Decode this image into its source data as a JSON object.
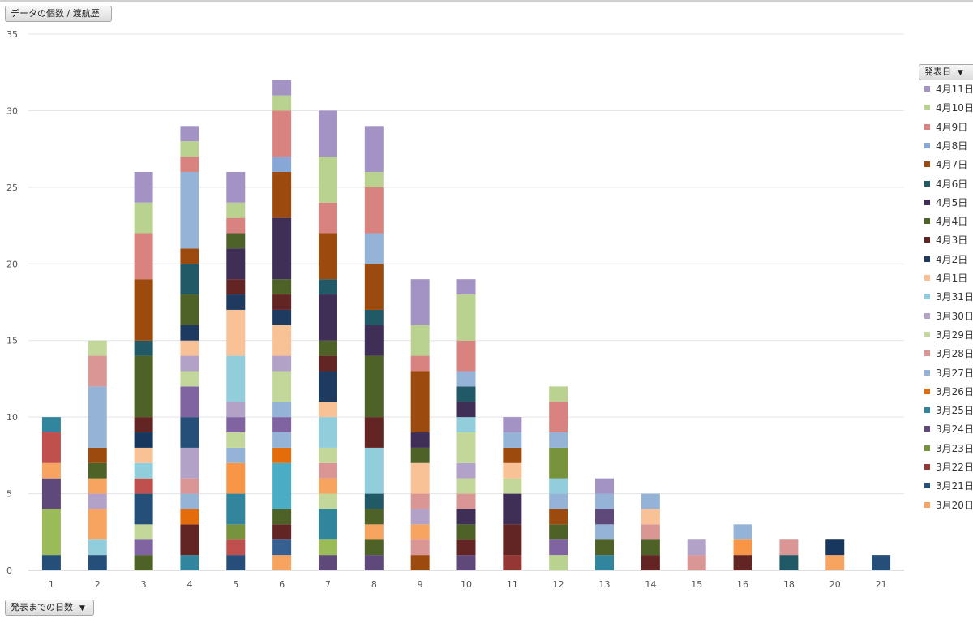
{
  "controls": {
    "value_field": "データの個数 / 渡航歴",
    "legend_field": "発表日",
    "axis_field": "発表までの日数",
    "dropdown_glyph": "▼"
  },
  "chart_data": {
    "type": "bar",
    "stacked": true,
    "title": "",
    "xlabel": "",
    "ylabel": "",
    "ylim": [
      0,
      35
    ],
    "yticks": [
      0,
      5,
      10,
      15,
      20,
      25,
      30,
      35
    ],
    "grid": true,
    "legend_position": "right",
    "categories": [
      "1",
      "2",
      "3",
      "4",
      "5",
      "6",
      "7",
      "8",
      "9",
      "10",
      "11",
      "12",
      "13",
      "14",
      "15",
      "16",
      "18",
      "20",
      "21"
    ],
    "stacks": [
      [
        [
          "3月21日",
          1
        ],
        [
          "3月23日",
          3
        ],
        [
          "3月24日",
          2
        ],
        [
          "3月20日",
          1
        ],
        [
          "3月22日",
          2
        ],
        [
          "3月25日",
          1
        ]
      ],
      [
        [
          "3月21日",
          1
        ],
        [
          "3月31日",
          1
        ],
        [
          "3月20日",
          2
        ],
        [
          "3月30日",
          1
        ],
        [
          "3月20日",
          1
        ],
        [
          "4月4日",
          1
        ],
        [
          "4月7日",
          1
        ],
        [
          "3月27日",
          4
        ],
        [
          "3月28日",
          2
        ],
        [
          "3月29日",
          1
        ]
      ],
      [
        [
          "4月4日",
          1
        ],
        [
          "3月24日",
          1
        ],
        [
          "3月29日",
          1
        ],
        [
          "3月21日",
          2
        ],
        [
          "3月22日",
          1
        ],
        [
          "3月31日",
          1
        ],
        [
          "4月1日",
          1
        ],
        [
          "4月2日",
          1
        ],
        [
          "4月3日",
          1
        ],
        [
          "4月4日",
          4
        ],
        [
          "4月6日",
          1
        ],
        [
          "4月7日",
          4
        ],
        [
          "4月9日",
          3
        ],
        [
          "4月10日",
          2
        ],
        [
          "4月11日",
          2
        ]
      ],
      [
        [
          "3月25日",
          1
        ],
        [
          "4月3日",
          2
        ],
        [
          "3月26日",
          1
        ],
        [
          "3月27日",
          1
        ],
        [
          "3月28日",
          1
        ],
        [
          "3月30日",
          2
        ],
        [
          "3月21日",
          2
        ],
        [
          "3月24日",
          2
        ],
        [
          "3月29日",
          1
        ],
        [
          "3月30日",
          1
        ],
        [
          "4月1日",
          1
        ],
        [
          "4月2日",
          1
        ],
        [
          "4月4日",
          2
        ],
        [
          "4月6日",
          2
        ],
        [
          "4月7日",
          1
        ],
        [
          "3月27日",
          5
        ],
        [
          "4月9日",
          1
        ],
        [
          "4月10日",
          1
        ],
        [
          "4月11日",
          1
        ]
      ],
      [
        [
          "3月21日",
          1
        ],
        [
          "3月22日",
          1
        ],
        [
          "3月23日",
          1
        ],
        [
          "3月25日",
          2
        ],
        [
          "3月26日",
          2
        ],
        [
          "3月27日",
          1
        ],
        [
          "3月29日",
          1
        ],
        [
          "3月24日",
          1
        ],
        [
          "3月30日",
          1
        ],
        [
          "3月31日",
          3
        ],
        [
          "4月1日",
          3
        ],
        [
          "4月2日",
          1
        ],
        [
          "4月3日",
          1
        ],
        [
          "4月5日",
          2
        ],
        [
          "4月4日",
          1
        ],
        [
          "4月9日",
          1
        ],
        [
          "4月10日",
          1
        ],
        [
          "4月11日",
          2
        ]
      ],
      [
        [
          "3月20日",
          1
        ],
        [
          "3月21日",
          1
        ],
        [
          "4月3日",
          1
        ],
        [
          "4月4日",
          1
        ],
        [
          "3月25日",
          3
        ],
        [
          "3月26日",
          1
        ],
        [
          "3月27日",
          1
        ],
        [
          "3月24日",
          1
        ],
        [
          "3月27日",
          1
        ],
        [
          "3月29日",
          2
        ],
        [
          "3月30日",
          1
        ],
        [
          "4月1日",
          2
        ],
        [
          "4月2日",
          1
        ],
        [
          "4月3日",
          1
        ],
        [
          "4月4日",
          1
        ],
        [
          "4月5日",
          4
        ],
        [
          "4月7日",
          3
        ],
        [
          "4月8日",
          1
        ],
        [
          "4月9日",
          3
        ],
        [
          "4月10日",
          1
        ],
        [
          "4月11日",
          1
        ]
      ],
      [
        [
          "3月24日",
          1
        ],
        [
          "3月23日",
          1
        ],
        [
          "3月25日",
          2
        ],
        [
          "3月29日",
          1
        ],
        [
          "3月20日",
          1
        ],
        [
          "3月28日",
          1
        ],
        [
          "3月29日",
          1
        ],
        [
          "3月31日",
          2
        ],
        [
          "4月1日",
          1
        ],
        [
          "4月2日",
          2
        ],
        [
          "4月3日",
          1
        ],
        [
          "4月4日",
          1
        ],
        [
          "4月5日",
          3
        ],
        [
          "4月6日",
          1
        ],
        [
          "4月7日",
          3
        ],
        [
          "4月9日",
          2
        ],
        [
          "4月10日",
          3
        ],
        [
          "4月11日",
          3
        ]
      ],
      [
        [
          "3月24日",
          1
        ],
        [
          "4月4日",
          1
        ],
        [
          "3月20日",
          1
        ],
        [
          "4月4日",
          1
        ],
        [
          "4月6日",
          1
        ],
        [
          "3月31日",
          3
        ],
        [
          "4月3日",
          2
        ],
        [
          "4月4日",
          4
        ],
        [
          "4月5日",
          2
        ],
        [
          "4月6日",
          1
        ],
        [
          "4月7日",
          3
        ],
        [
          "3月27日",
          2
        ],
        [
          "4月9日",
          3
        ],
        [
          "4月10日",
          1
        ],
        [
          "4月11日",
          3
        ]
      ],
      [
        [
          "4月7日",
          1
        ],
        [
          "3月28日",
          1
        ],
        [
          "3月20日",
          1
        ],
        [
          "3月30日",
          1
        ],
        [
          "3月28日",
          1
        ],
        [
          "4月1日",
          2
        ],
        [
          "4月4日",
          1
        ],
        [
          "4月5日",
          1
        ],
        [
          "4月7日",
          4
        ],
        [
          "4月9日",
          1
        ],
        [
          "4月10日",
          2
        ],
        [
          "4月11日",
          3
        ]
      ],
      [
        [
          "3月24日",
          1
        ],
        [
          "4月3日",
          1
        ],
        [
          "4月4日",
          1
        ],
        [
          "4月5日",
          1
        ],
        [
          "3月28日",
          1
        ],
        [
          "3月29日",
          1
        ],
        [
          "3月30日",
          1
        ],
        [
          "3月29日",
          2
        ],
        [
          "3月31日",
          1
        ],
        [
          "4月5日",
          1
        ],
        [
          "4月6日",
          1
        ],
        [
          "3月27日",
          1
        ],
        [
          "4月9日",
          2
        ],
        [
          "4月10日",
          3
        ],
        [
          "4月11日",
          1
        ]
      ],
      [
        [
          "3月22日",
          1
        ],
        [
          "4月3日",
          2
        ],
        [
          "4月5日",
          2
        ],
        [
          "3月29日",
          1
        ],
        [
          "4月1日",
          1
        ],
        [
          "4月7日",
          1
        ],
        [
          "3月27日",
          1
        ],
        [
          "4月11日",
          1
        ]
      ],
      [
        [
          "4月10日",
          1
        ],
        [
          "3月24日",
          1
        ],
        [
          "4月4日",
          1
        ],
        [
          "4月7日",
          1
        ],
        [
          "3月27日",
          1
        ],
        [
          "3月31日",
          1
        ],
        [
          "3月23日",
          2
        ],
        [
          "3月27日",
          1
        ],
        [
          "4月9日",
          2
        ],
        [
          "4月10日",
          1
        ]
      ],
      [
        [
          "3月25日",
          1
        ],
        [
          "4月4日",
          1
        ],
        [
          "3月27日",
          1
        ],
        [
          "3月24日",
          1
        ],
        [
          "3月27日",
          1
        ],
        [
          "4月11日",
          1
        ]
      ],
      [
        [
          "4月3日",
          1
        ],
        [
          "4月4日",
          1
        ],
        [
          "3月28日",
          1
        ],
        [
          "4月1日",
          1
        ],
        [
          "3月27日",
          1
        ]
      ],
      [
        [
          "3月28日",
          1
        ],
        [
          "3月30日",
          1
        ]
      ],
      [
        [
          "4月3日",
          1
        ],
        [
          "3月26日",
          1
        ],
        [
          "3月27日",
          1
        ]
      ],
      [
        [
          "4月6日",
          1
        ],
        [
          "3月28日",
          1
        ]
      ],
      [
        [
          "3月20日",
          1
        ],
        [
          "4月2日",
          1
        ]
      ],
      [
        [
          "3月21日",
          1
        ]
      ]
    ],
    "legend": [
      {
        "name": "4月11日",
        "color": "#a393c4"
      },
      {
        "name": "4月10日",
        "color": "#b9d290"
      },
      {
        "name": "4月9日",
        "color": "#d88380"
      },
      {
        "name": "4月8日",
        "color": "#87a7d6"
      },
      {
        "name": "4月7日",
        "color": "#9c4a0d"
      },
      {
        "name": "4月6日",
        "color": "#215a66"
      },
      {
        "name": "4月5日",
        "color": "#3f2e56"
      },
      {
        "name": "4月4日",
        "color": "#4e6228"
      },
      {
        "name": "4月3日",
        "color": "#632523"
      },
      {
        "name": "4月2日",
        "color": "#1f3a60"
      },
      {
        "name": "4月1日",
        "color": "#f9c196"
      },
      {
        "name": "3月31日",
        "color": "#92cddc"
      },
      {
        "name": "3月30日",
        "color": "#b3a2c7"
      },
      {
        "name": "3月29日",
        "color": "#c4d79b"
      },
      {
        "name": "3月28日",
        "color": "#da9694"
      },
      {
        "name": "3月27日",
        "color": "#95b3d7"
      },
      {
        "name": "3月26日",
        "color": "#e46c0a"
      },
      {
        "name": "3月25日",
        "color": "#31859c"
      },
      {
        "name": "3月24日",
        "color": "#5f497a"
      },
      {
        "name": "3月23日",
        "color": "#77933c"
      },
      {
        "name": "3月22日",
        "color": "#953735"
      },
      {
        "name": "3月21日",
        "color": "#254e79"
      },
      {
        "name": "3月20日",
        "color": "#f6a460"
      }
    ],
    "extra_colors": {
      "3月21日": "#366092",
      "3月25日": "#4bacc6",
      "3月22日": "#c0504d",
      "3月24日": "#8064a2",
      "3月23日": "#9bbb59",
      "3月26日": "#f79646",
      "4月2日": "#17375e"
    }
  }
}
